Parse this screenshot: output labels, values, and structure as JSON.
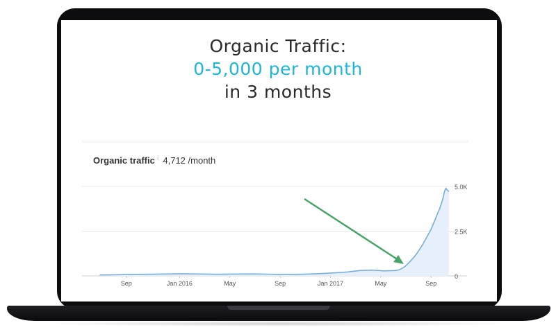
{
  "headline": {
    "line1": "Organic Traffic:",
    "line2": "0-5,000 per month",
    "line3": "in 3 months"
  },
  "panel": {
    "label": "Organic traffic",
    "info_icon": "info-icon",
    "value": "4,712 /month"
  },
  "colors": {
    "accent": "#1fb6d6",
    "line": "#7aaed8",
    "fill": "#e6f0fa",
    "arrow": "#4aa36a",
    "grid": "#e8e8e8"
  },
  "chart_data": {
    "type": "area",
    "title": "Organic traffic",
    "x_tick_labels": [
      "Sep",
      "Jan 2016",
      "May",
      "Sep",
      "Jan 2017",
      "May",
      "Sep"
    ],
    "y_tick_labels": [
      "5.0K",
      "2.5K",
      "0"
    ],
    "y_ticks": [
      5000,
      2500,
      0
    ],
    "ylim": [
      0,
      5000
    ],
    "grid": true,
    "series": [
      {
        "x": [
          0,
          4,
          8,
          12,
          16,
          20,
          24,
          28,
          32,
          36,
          40,
          44,
          48,
          52,
          56,
          60,
          64,
          68,
          72,
          76,
          80,
          84,
          88,
          92,
          96,
          100,
          101,
          102,
          103,
          104,
          105,
          106,
          107,
          108,
          109,
          110,
          111,
          112,
          113,
          114,
          115,
          116,
          116.5,
          117,
          117.5,
          118
        ],
        "values": [
          50,
          60,
          70,
          80,
          90,
          100,
          110,
          120,
          110,
          100,
          90,
          100,
          105,
          110,
          95,
          85,
          80,
          90,
          110,
          140,
          180,
          220,
          300,
          320,
          280,
          300,
          330,
          400,
          500,
          650,
          820,
          1000,
          1200,
          1450,
          1700,
          2000,
          2300,
          2600,
          3000,
          3400,
          3800,
          4300,
          4700,
          4900,
          4800,
          4712
        ]
      }
    ],
    "x_tick_positions": [
      9,
      27,
      44,
      61,
      78,
      95,
      112
    ],
    "xlim": [
      -2,
      119
    ],
    "annotation": "arrow"
  }
}
